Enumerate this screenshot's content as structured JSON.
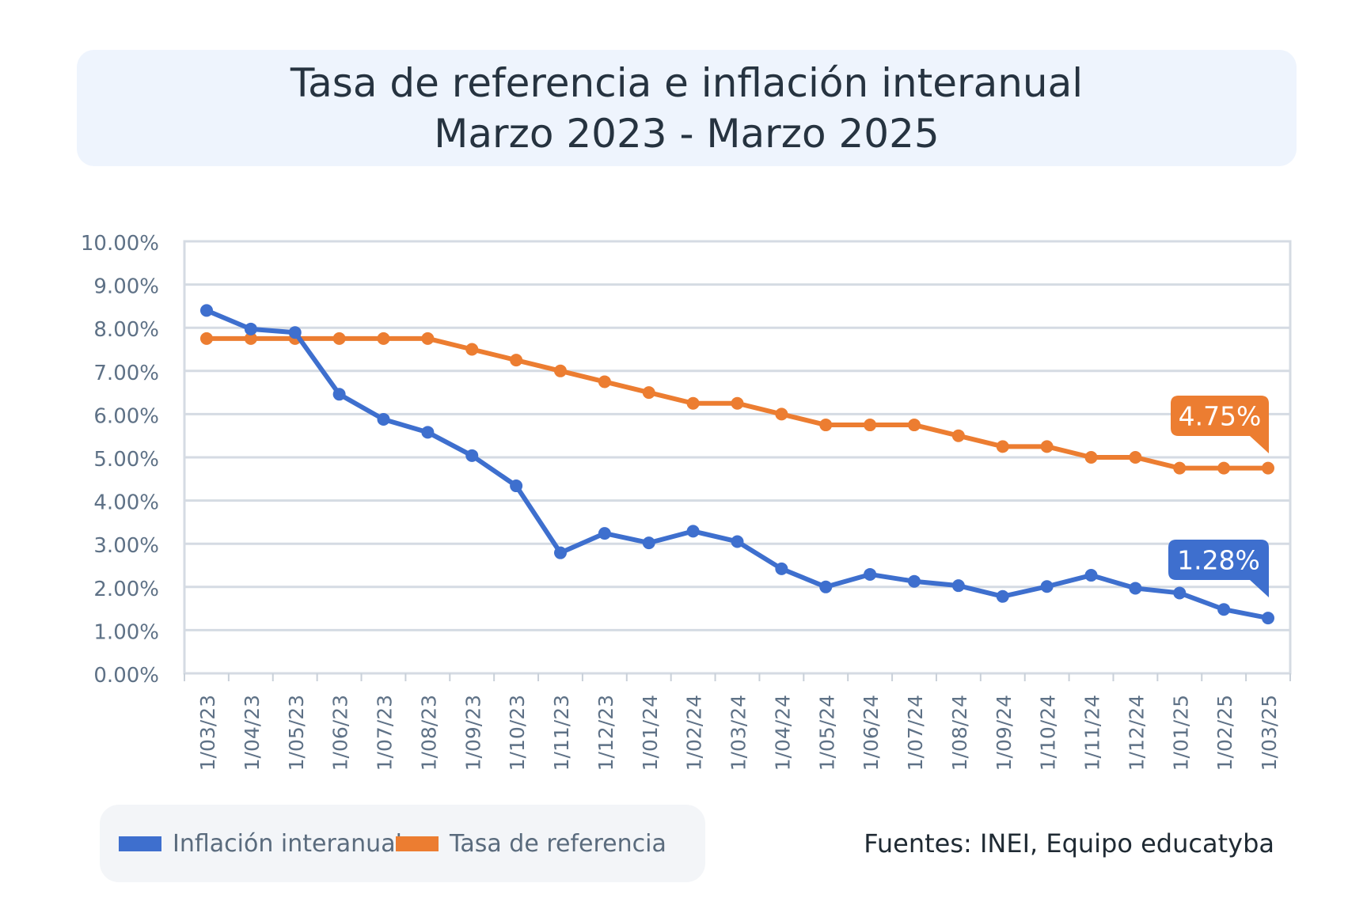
{
  "header": {
    "title_line1": "Tasa de referencia e inflación interanual",
    "title_line2": "Marzo 2023 - Marzo 2025"
  },
  "chart_data": {
    "type": "line",
    "title": "Tasa de referencia e inflación interanual Marzo 2023 - Marzo 2025",
    "xlabel": "",
    "ylabel": "",
    "ylim": [
      0,
      10
    ],
    "y_ticks": [
      "0.00%",
      "1.00%",
      "2.00%",
      "3.00%",
      "4.00%",
      "5.00%",
      "6.00%",
      "7.00%",
      "8.00%",
      "9.00%",
      "10.00%"
    ],
    "grid": true,
    "legend_placement": "bottom-left",
    "categories": [
      "1/03/23",
      "1/04/23",
      "1/05/23",
      "1/06/23",
      "1/07/23",
      "1/08/23",
      "1/09/23",
      "1/10/23",
      "1/11/23",
      "1/12/23",
      "1/01/24",
      "1/02/24",
      "1/03/24",
      "1/04/24",
      "1/05/24",
      "1/06/24",
      "1/07/24",
      "1/08/24",
      "1/09/24",
      "1/10/24",
      "1/11/24",
      "1/12/24",
      "1/01/25",
      "1/02/25",
      "1/03/25"
    ],
    "series": [
      {
        "name": "Inflación interanual",
        "color": "#3e6fce",
        "values": [
          8.4,
          7.97,
          7.89,
          6.46,
          5.88,
          5.58,
          5.04,
          4.34,
          2.79,
          3.24,
          3.02,
          3.29,
          3.05,
          2.42,
          2.0,
          2.29,
          2.13,
          2.03,
          1.78,
          2.01,
          2.27,
          1.97,
          1.86,
          1.48,
          1.28
        ],
        "end_label": "1.28%"
      },
      {
        "name": "Tasa de referencia",
        "color": "#ec7d31",
        "values": [
          7.75,
          7.75,
          7.75,
          7.75,
          7.75,
          7.75,
          7.5,
          7.25,
          7.0,
          6.75,
          6.5,
          6.25,
          6.25,
          6.0,
          5.75,
          5.75,
          5.75,
          5.5,
          5.25,
          5.25,
          5.0,
          5.0,
          4.75,
          4.75,
          4.75
        ],
        "end_label": "4.75%"
      }
    ]
  },
  "legend": {
    "items": [
      {
        "label": "Inflación interanual",
        "color": "#3e6fce"
      },
      {
        "label": "Tasa de referencia",
        "color": "#ec7d31"
      }
    ]
  },
  "source_text": "Fuentes: INEI, Equipo educatyba"
}
